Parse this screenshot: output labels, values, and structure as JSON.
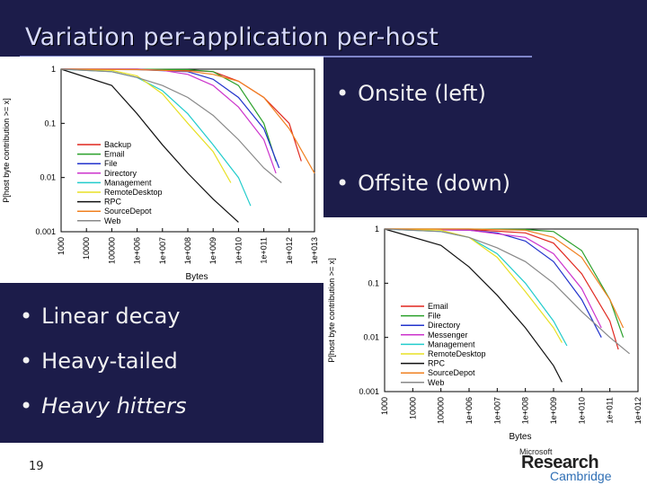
{
  "slide": {
    "title": "Variation per-application per-host",
    "bullets_right": [
      "Onsite (left)",
      "Offsite (down)"
    ],
    "bullets_left": [
      "Linear decay",
      "Heavy-tailed",
      "Heavy hitters"
    ],
    "bullet_glyph": "•",
    "slide_number": "19",
    "logo": {
      "top": "Microsoft",
      "main": "Research",
      "sub": "Cambridge"
    },
    "colors": {
      "background": "#1c1c4a",
      "title": "#d8dbff",
      "bullet": "#f2f2f2"
    }
  },
  "chart_data": [
    {
      "type": "line",
      "name": "onsite",
      "xscale": "log",
      "yscale": "log",
      "xlabel": "Bytes",
      "ylabel": "P[host byte contribution >= x]",
      "xticks": [
        1000,
        10000,
        100000,
        1000000,
        10000000,
        100000000,
        1000000000,
        10000000000,
        100000000000,
        1000000000000,
        10000000000000
      ],
      "xtick_labels": [
        "1000",
        "10000",
        "100000",
        "1e+006",
        "1e+007",
        "1e+008",
        "1e+009",
        "1e+010",
        "1e+011",
        "1e+012",
        "1e+013"
      ],
      "yticks": [
        0.001,
        0.01,
        0.1,
        1
      ],
      "ytick_labels": [
        "0.001",
        "0.01",
        "0.1",
        "1"
      ],
      "xlim": [
        1000,
        10000000000000
      ],
      "ylim": [
        0.001,
        1
      ],
      "legend_position": "lower-left",
      "series": [
        {
          "name": "Backup",
          "color": "#e0271f",
          "points": [
            [
              1000,
              1
            ],
            [
              1000000.0,
              1
            ],
            [
              100000000.0,
              0.95
            ],
            [
              1000000000.0,
              0.9
            ],
            [
              10000000000.0,
              0.6
            ],
            [
              100000000000.0,
              0.3
            ],
            [
              1000000000000.0,
              0.1
            ],
            [
              3000000000000.0,
              0.02
            ]
          ]
        },
        {
          "name": "Email",
          "color": "#2aa02a",
          "points": [
            [
              1000,
              1
            ],
            [
              1000000.0,
              1
            ],
            [
              100000000.0,
              0.98
            ],
            [
              1000000000.0,
              0.9
            ],
            [
              10000000000.0,
              0.5
            ],
            [
              100000000000.0,
              0.1
            ],
            [
              300000000000.0,
              0.02
            ]
          ]
        },
        {
          "name": "File",
          "color": "#2233cc",
          "points": [
            [
              1000,
              1
            ],
            [
              1000000.0,
              0.98
            ],
            [
              100000000.0,
              0.9
            ],
            [
              1000000000.0,
              0.65
            ],
            [
              10000000000.0,
              0.3
            ],
            [
              100000000000.0,
              0.08
            ],
            [
              400000000000.0,
              0.015
            ]
          ]
        },
        {
          "name": "Directory",
          "color": "#cc33cc",
          "points": [
            [
              1000,
              1
            ],
            [
              1000000.0,
              1
            ],
            [
              10000000.0,
              0.95
            ],
            [
              100000000.0,
              0.8
            ],
            [
              1000000000.0,
              0.5
            ],
            [
              10000000000.0,
              0.2
            ],
            [
              100000000000.0,
              0.05
            ],
            [
              300000000000.0,
              0.012
            ]
          ]
        },
        {
          "name": "Management",
          "color": "#22cccc",
          "points": [
            [
              1000,
              1
            ],
            [
              100000.0,
              0.9
            ],
            [
              1000000.0,
              0.7
            ],
            [
              10000000.0,
              0.4
            ],
            [
              100000000.0,
              0.15
            ],
            [
              1000000000.0,
              0.04
            ],
            [
              10000000000.0,
              0.01
            ],
            [
              30000000000.0,
              0.003
            ]
          ]
        },
        {
          "name": "RemoteDesktop",
          "color": "#e8e025",
          "points": [
            [
              1000,
              1
            ],
            [
              100000.0,
              0.95
            ],
            [
              1000000.0,
              0.75
            ],
            [
              10000000.0,
              0.35
            ],
            [
              100000000.0,
              0.1
            ],
            [
              1000000000.0,
              0.03
            ],
            [
              5000000000.0,
              0.008
            ]
          ]
        },
        {
          "name": "RPC",
          "color": "#111111",
          "points": [
            [
              1000,
              1
            ],
            [
              100000.0,
              0.5
            ],
            [
              1000000.0,
              0.15
            ],
            [
              10000000.0,
              0.04
            ],
            [
              100000000.0,
              0.012
            ],
            [
              1000000000.0,
              0.004
            ],
            [
              10000000000.0,
              0.0015
            ]
          ]
        },
        {
          "name": "SourceDepot",
          "color": "#f08020",
          "points": [
            [
              1000,
              1
            ],
            [
              1000000.0,
              0.98
            ],
            [
              100000000.0,
              0.92
            ],
            [
              1000000000.0,
              0.8
            ],
            [
              10000000000.0,
              0.6
            ],
            [
              100000000000.0,
              0.3
            ],
            [
              1000000000000.0,
              0.08
            ],
            [
              10000000000000.0,
              0.012
            ]
          ]
        },
        {
          "name": "Web",
          "color": "#888888",
          "points": [
            [
              1000,
              1
            ],
            [
              100000.0,
              0.9
            ],
            [
              1000000.0,
              0.7
            ],
            [
              10000000.0,
              0.5
            ],
            [
              100000000.0,
              0.3
            ],
            [
              1000000000.0,
              0.14
            ],
            [
              10000000000.0,
              0.05
            ],
            [
              100000000000.0,
              0.015
            ],
            [
              500000000000.0,
              0.008
            ]
          ]
        }
      ]
    },
    {
      "type": "line",
      "name": "offsite",
      "xscale": "log",
      "yscale": "log",
      "xlabel": "Bytes",
      "ylabel": "P[host byte contribution >= x]",
      "xticks": [
        1000,
        10000,
        100000,
        1000000,
        10000000,
        100000000,
        1000000000,
        10000000000,
        100000000000,
        1000000000000
      ],
      "xtick_labels": [
        "1000",
        "10000",
        "100000",
        "1e+006",
        "1e+007",
        "1e+008",
        "1e+009",
        "1e+010",
        "1e+011",
        "1e+012"
      ],
      "yticks": [
        0.001,
        0.01,
        0.1,
        1
      ],
      "ytick_labels": [
        "0.001",
        "0.01",
        "0.1",
        "1"
      ],
      "xlim": [
        1000,
        1000000000000
      ],
      "ylim": [
        0.001,
        1
      ],
      "legend_position": "lower-left",
      "series": [
        {
          "name": "Email",
          "color": "#e0271f",
          "points": [
            [
              1000,
              1
            ],
            [
              1000000.0,
              0.98
            ],
            [
              100000000.0,
              0.85
            ],
            [
              1000000000.0,
              0.55
            ],
            [
              10000000000.0,
              0.15
            ],
            [
              100000000000.0,
              0.02
            ],
            [
              200000000000.0,
              0.006
            ]
          ]
        },
        {
          "name": "File",
          "color": "#2aa02a",
          "points": [
            [
              1000,
              1
            ],
            [
              1000000.0,
              1
            ],
            [
              100000000.0,
              0.98
            ],
            [
              1000000000.0,
              0.9
            ],
            [
              10000000000.0,
              0.4
            ],
            [
              100000000000.0,
              0.05
            ],
            [
              300000000000.0,
              0.01
            ]
          ]
        },
        {
          "name": "Directory",
          "color": "#2233cc",
          "points": [
            [
              1000,
              1
            ],
            [
              1000000.0,
              0.95
            ],
            [
              10000000.0,
              0.85
            ],
            [
              100000000.0,
              0.6
            ],
            [
              1000000000.0,
              0.25
            ],
            [
              10000000000.0,
              0.05
            ],
            [
              50000000000.0,
              0.01
            ]
          ]
        },
        {
          "name": "Messenger",
          "color": "#cc33cc",
          "points": [
            [
              1000,
              1
            ],
            [
              1000000.0,
              0.95
            ],
            [
              100000000.0,
              0.7
            ],
            [
              1000000000.0,
              0.35
            ],
            [
              10000000000.0,
              0.08
            ],
            [
              50000000000.0,
              0.015
            ]
          ]
        },
        {
          "name": "Management",
          "color": "#22cccc",
          "points": [
            [
              1000,
              1
            ],
            [
              100000.0,
              0.9
            ],
            [
              1000000.0,
              0.7
            ],
            [
              10000000.0,
              0.35
            ],
            [
              100000000.0,
              0.1
            ],
            [
              1000000000.0,
              0.02
            ],
            [
              3000000000.0,
              0.007
            ]
          ]
        },
        {
          "name": "RemoteDesktop",
          "color": "#e8e025",
          "points": [
            [
              1000,
              1
            ],
            [
              100000.0,
              0.95
            ],
            [
              1000000.0,
              0.7
            ],
            [
              10000000.0,
              0.3
            ],
            [
              100000000.0,
              0.07
            ],
            [
              1000000000.0,
              0.015
            ],
            [
              2000000000.0,
              0.008
            ]
          ]
        },
        {
          "name": "RPC",
          "color": "#111111",
          "points": [
            [
              1000,
              1
            ],
            [
              100000.0,
              0.5
            ],
            [
              1000000.0,
              0.2
            ],
            [
              10000000.0,
              0.06
            ],
            [
              100000000.0,
              0.015
            ],
            [
              1000000000.0,
              0.003
            ],
            [
              2000000000.0,
              0.0015
            ]
          ]
        },
        {
          "name": "SourceDepot",
          "color": "#f08020",
          "points": [
            [
              1000,
              1
            ],
            [
              1000000.0,
              1
            ],
            [
              100000000.0,
              0.95
            ],
            [
              1000000000.0,
              0.7
            ],
            [
              10000000000.0,
              0.3
            ],
            [
              100000000000.0,
              0.05
            ],
            [
              300000000000.0,
              0.015
            ]
          ]
        },
        {
          "name": "Web",
          "color": "#888888",
          "points": [
            [
              1000,
              1
            ],
            [
              100000.0,
              0.9
            ],
            [
              1000000.0,
              0.7
            ],
            [
              10000000.0,
              0.45
            ],
            [
              100000000.0,
              0.25
            ],
            [
              1000000000.0,
              0.1
            ],
            [
              10000000000.0,
              0.03
            ],
            [
              100000000000.0,
              0.01
            ],
            [
              500000000000.0,
              0.005
            ]
          ]
        }
      ]
    }
  ]
}
